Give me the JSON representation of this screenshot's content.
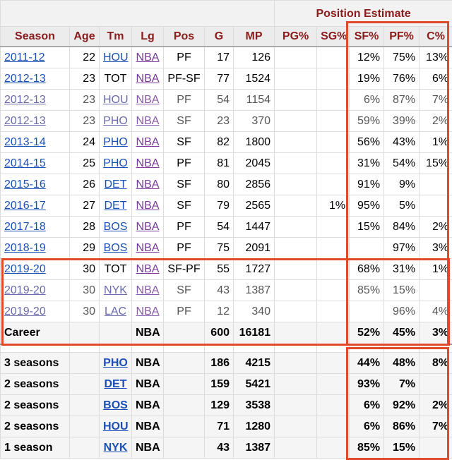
{
  "group_header": "Position Estimate",
  "columns": [
    "Season",
    "Age",
    "Tm",
    "Lg",
    "Pos",
    "G",
    "MP",
    "PG%",
    "SG%",
    "SF%",
    "PF%",
    "C%"
  ],
  "rows": [
    {
      "season": "2011-12",
      "age": "22",
      "tm": "HOU",
      "lg": "NBA",
      "pos": "PF",
      "g": "17",
      "mp": "126",
      "pg": "",
      "sg": "",
      "sf": "12%",
      "pf": "75%",
      "c": "13%",
      "tm_link": true,
      "dim": false
    },
    {
      "season": "2012-13",
      "age": "23",
      "tm": "TOT",
      "lg": "NBA",
      "pos": "PF-SF",
      "g": "77",
      "mp": "1524",
      "pg": "",
      "sg": "",
      "sf": "19%",
      "pf": "76%",
      "c": "6%",
      "tm_link": false,
      "dim": false
    },
    {
      "season": "2012-13",
      "age": "23",
      "tm": "HOU",
      "lg": "NBA",
      "pos": "PF",
      "g": "54",
      "mp": "1154",
      "pg": "",
      "sg": "",
      "sf": "6%",
      "pf": "87%",
      "c": "7%",
      "tm_link": true,
      "dim": true
    },
    {
      "season": "2012-13",
      "age": "23",
      "tm": "PHO",
      "lg": "NBA",
      "pos": "SF",
      "g": "23",
      "mp": "370",
      "pg": "",
      "sg": "",
      "sf": "59%",
      "pf": "39%",
      "c": "2%",
      "tm_link": true,
      "dim": true
    },
    {
      "season": "2013-14",
      "age": "24",
      "tm": "PHO",
      "lg": "NBA",
      "pos": "SF",
      "g": "82",
      "mp": "1800",
      "pg": "",
      "sg": "",
      "sf": "56%",
      "pf": "43%",
      "c": "1%",
      "tm_link": true,
      "dim": false
    },
    {
      "season": "2014-15",
      "age": "25",
      "tm": "PHO",
      "lg": "NBA",
      "pos": "PF",
      "g": "81",
      "mp": "2045",
      "pg": "",
      "sg": "",
      "sf": "31%",
      "pf": "54%",
      "c": "15%",
      "tm_link": true,
      "dim": false
    },
    {
      "season": "2015-16",
      "age": "26",
      "tm": "DET",
      "lg": "NBA",
      "pos": "SF",
      "g": "80",
      "mp": "2856",
      "pg": "",
      "sg": "",
      "sf": "91%",
      "pf": "9%",
      "c": "",
      "tm_link": true,
      "dim": false
    },
    {
      "season": "2016-17",
      "age": "27",
      "tm": "DET",
      "lg": "NBA",
      "pos": "SF",
      "g": "79",
      "mp": "2565",
      "pg": "",
      "sg": "1%",
      "sf": "95%",
      "pf": "5%",
      "c": "",
      "tm_link": true,
      "dim": false
    },
    {
      "season": "2017-18",
      "age": "28",
      "tm": "BOS",
      "lg": "NBA",
      "pos": "PF",
      "g": "54",
      "mp": "1447",
      "pg": "",
      "sg": "",
      "sf": "15%",
      "pf": "84%",
      "c": "2%",
      "tm_link": true,
      "dim": false
    },
    {
      "season": "2018-19",
      "age": "29",
      "tm": "BOS",
      "lg": "NBA",
      "pos": "PF",
      "g": "75",
      "mp": "2091",
      "pg": "",
      "sg": "",
      "sf": "",
      "pf": "97%",
      "c": "3%",
      "tm_link": true,
      "dim": false
    },
    {
      "season": "2019-20",
      "age": "30",
      "tm": "TOT",
      "lg": "NBA",
      "pos": "SF-PF",
      "g": "55",
      "mp": "1727",
      "pg": "",
      "sg": "",
      "sf": "68%",
      "pf": "31%",
      "c": "1%",
      "tm_link": false,
      "dim": false
    },
    {
      "season": "2019-20",
      "age": "30",
      "tm": "NYK",
      "lg": "NBA",
      "pos": "SF",
      "g": "43",
      "mp": "1387",
      "pg": "",
      "sg": "",
      "sf": "85%",
      "pf": "15%",
      "c": "",
      "tm_link": true,
      "dim": true
    },
    {
      "season": "2019-20",
      "age": "30",
      "tm": "LAC",
      "lg": "NBA",
      "pos": "PF",
      "g": "12",
      "mp": "340",
      "pg": "",
      "sg": "",
      "sf": "",
      "pf": "96%",
      "c": "4%",
      "tm_link": true,
      "dim": true
    }
  ],
  "career": {
    "label": "Career",
    "lg": "NBA",
    "g": "600",
    "mp": "16181",
    "sf": "52%",
    "pf": "45%",
    "c": "3%"
  },
  "team_rows": [
    {
      "label": "3 seasons",
      "tm": "PHO",
      "lg": "NBA",
      "g": "186",
      "mp": "4215",
      "sf": "44%",
      "pf": "48%",
      "c": "8%"
    },
    {
      "label": "2 seasons",
      "tm": "DET",
      "lg": "NBA",
      "g": "159",
      "mp": "5421",
      "sf": "93%",
      "pf": "7%",
      "c": ""
    },
    {
      "label": "2 seasons",
      "tm": "BOS",
      "lg": "NBA",
      "g": "129",
      "mp": "3538",
      "sf": "6%",
      "pf": "92%",
      "c": "2%"
    },
    {
      "label": "2 seasons",
      "tm": "HOU",
      "lg": "NBA",
      "g": "71",
      "mp": "1280",
      "sf": "6%",
      "pf": "86%",
      "c": "7%"
    },
    {
      "label": "1 season",
      "tm": "NYK",
      "lg": "NBA",
      "g": "43",
      "mp": "1387",
      "sf": "85%",
      "pf": "15%",
      "c": ""
    }
  ],
  "colors": {
    "header_text": "#8b1c1c",
    "link": "#1a50b5",
    "league_link": "#7a3a9a",
    "highlight_box": "#e04a2a"
  }
}
